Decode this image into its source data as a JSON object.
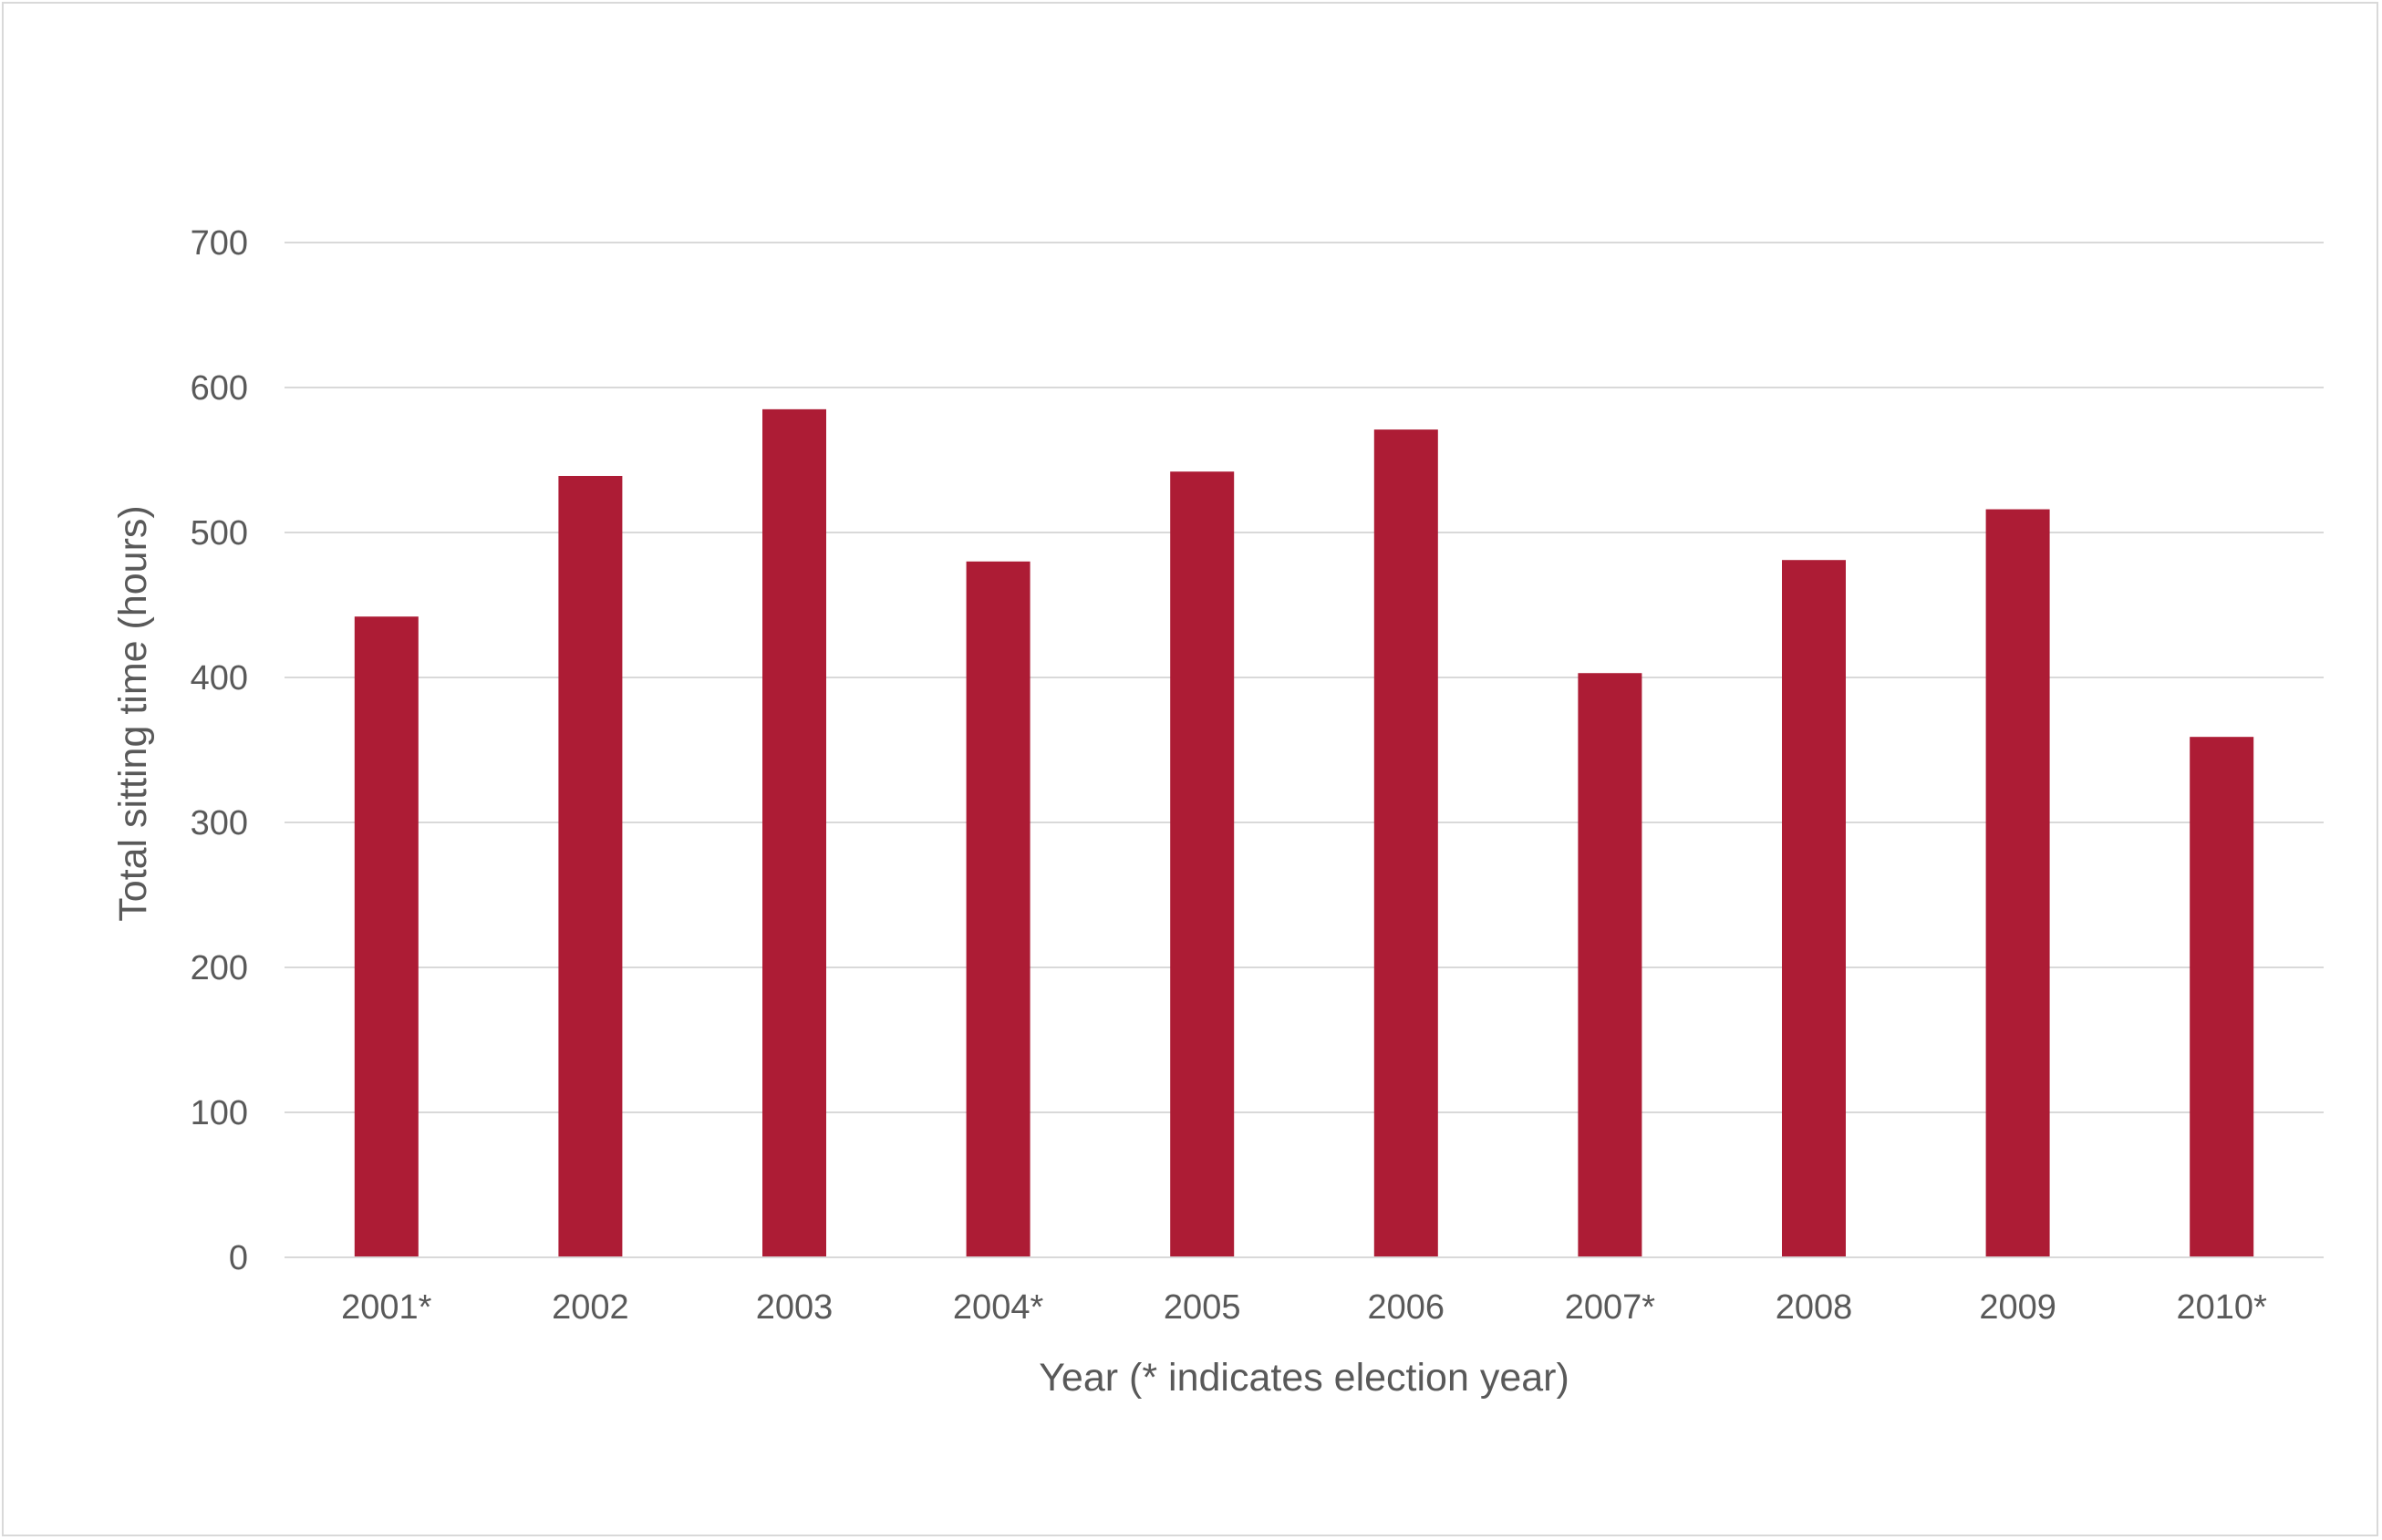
{
  "chart_data": {
    "type": "bar",
    "title": "",
    "xlabel": "Year (* indicates election year)",
    "ylabel": "Total sitting time (hours)",
    "categories": [
      "2001*",
      "2002",
      "2003",
      "2004*",
      "2005",
      "2006",
      "2007*",
      "2008",
      "2009",
      "2010*"
    ],
    "values": [
      442,
      539,
      585,
      480,
      542,
      571,
      403,
      481,
      516,
      359
    ],
    "ylim": [
      0,
      700
    ],
    "yticks": [
      "0",
      "100",
      "200",
      "300",
      "400",
      "500",
      "600",
      "700"
    ],
    "grid": true,
    "legend": "none",
    "colors": {
      "bar": "#ad1c35",
      "grid": "#d9d9d9",
      "text": "#595959",
      "frame": "#d9d9d9"
    }
  }
}
